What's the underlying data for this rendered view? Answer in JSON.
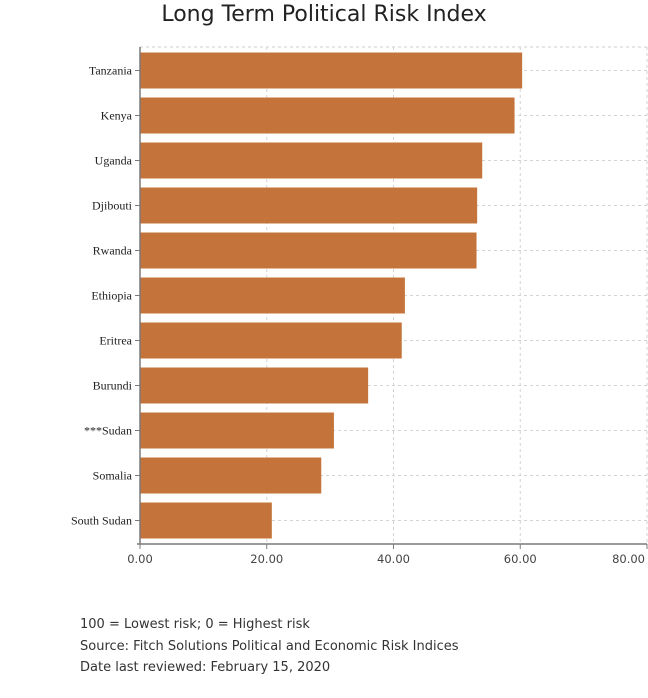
{
  "chart_data": {
    "type": "bar",
    "orientation": "horizontal",
    "title": "Long Term Political Risk Index",
    "xlabel": "",
    "ylabel": "",
    "categories": [
      "Tanzania",
      "Kenya",
      "Uganda",
      "Djibouti",
      "Rwanda",
      "Ethiopia",
      "Eritrea",
      "Burundi",
      "***Sudan",
      "Somalia",
      "South Sudan"
    ],
    "values": [
      60.3,
      59.1,
      54.0,
      53.2,
      53.1,
      41.8,
      41.3,
      36.0,
      30.6,
      28.6,
      20.8
    ],
    "xlim": [
      0,
      80
    ],
    "x_ticks": [
      "0.00",
      "20.00",
      "40.00",
      "60.00",
      "80.00"
    ],
    "grid": true,
    "bar_color": "#c4743a"
  },
  "notes": {
    "scale": "100 = Lowest risk; 0 = Highest risk",
    "source": "Source: Fitch Solutions Political and Economic Risk Indices",
    "reviewed": "Date last reviewed: February 15, 2020"
  }
}
